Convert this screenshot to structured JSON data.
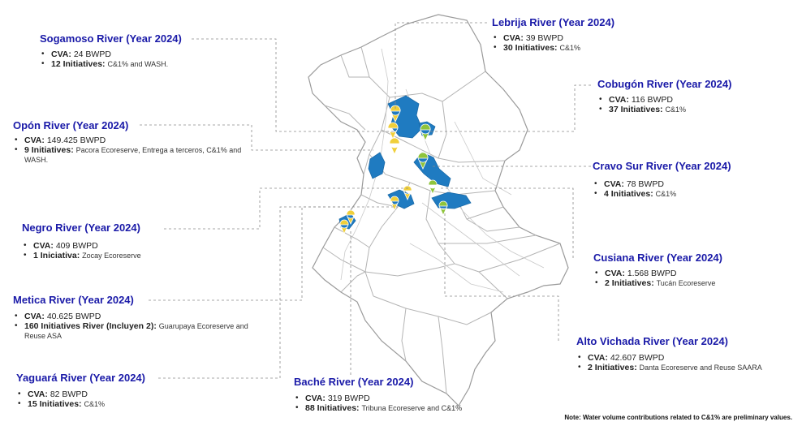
{
  "map": {
    "border_color": "#9a9a9a",
    "basin_color": "#1f7bc1",
    "connector_color": "#8a8a8a",
    "pin_colors": {
      "yellow": "#f0cf3a",
      "green": "#8fc43c"
    }
  },
  "cards": {
    "sogamoso": {
      "title": "Sogamoso River (Year 2024)",
      "cva_label": "CVA:",
      "cva_value": "24 BWPD",
      "init_label": "12 Initiatives:",
      "init_detail": "C&1% and WASH."
    },
    "lebrija": {
      "title": "Lebrija River (Year 2024)",
      "cva_label": "CVA:",
      "cva_value": "39 BWPD",
      "init_label": "30 Initiatives:",
      "init_detail": "C&1%"
    },
    "cobugon": {
      "title": "Cobugón River (Year 2024)",
      "cva_label": "CVA:",
      "cva_value": "116 BWPD",
      "init_label": "37 Initiatives:",
      "init_detail": "C&1%"
    },
    "opon": {
      "title": "Opón River (Year 2024)",
      "cva_label": "CVA:",
      "cva_value": "149.425 BWPD",
      "init_label": "9 Initiatives:",
      "init_detail": "Pacora Ecoreserve, Entrega a terceros, C&1% and WASH."
    },
    "cravo_sur": {
      "title": "Cravo Sur River (Year 2024)",
      "cva_label": "CVA:",
      "cva_value": "78 BWPD",
      "init_label": "4 Initiatives:",
      "init_detail": "C&1%"
    },
    "negro": {
      "title": "Negro River (Year 2024)",
      "cva_label": "CVA:",
      "cva_value": "409 BWPD",
      "init_label": "1 Iniciativa:",
      "init_detail": "Zocay Ecoreserve"
    },
    "cusiana": {
      "title": "Cusiana River (Year 2024)",
      "cva_label": "CVA:",
      "cva_value": "1.568 BWPD",
      "init_label": "2 Initiatives:",
      "init_detail": "Tucán Ecoreserve"
    },
    "metica": {
      "title": "Metica River (Year 2024)",
      "cva_label": "CVA:",
      "cva_value": "40.625 BWPD",
      "init_label": "160 Initiatives River (Incluyen 2):",
      "init_detail": "Guarupaya Ecoreserve and Reuse ASA"
    },
    "alto_vichada": {
      "title": "Alto Vichada River (Year 2024)",
      "cva_label": "CVA:",
      "cva_value": "42.607 BWPD",
      "init_label": "2 Initiatives:",
      "init_detail": "Danta Ecoreserve and Reuse SAARA"
    },
    "yaguara": {
      "title": "Yaguará River (Year 2024)",
      "cva_label": "CVA:",
      "cva_value": "82 BWPD",
      "init_label": "15 Initiatives:",
      "init_detail": "C&1%"
    },
    "bache": {
      "title": "Baché River (Year 2024)",
      "cva_label": "CVA:",
      "cva_value": "319 BWPD",
      "init_label": "88 Initiatives:",
      "init_detail": "Tribuna Ecoreserve and C&1%"
    }
  },
  "note": "Note: Water volume contributions related to C&1% are preliminary values."
}
